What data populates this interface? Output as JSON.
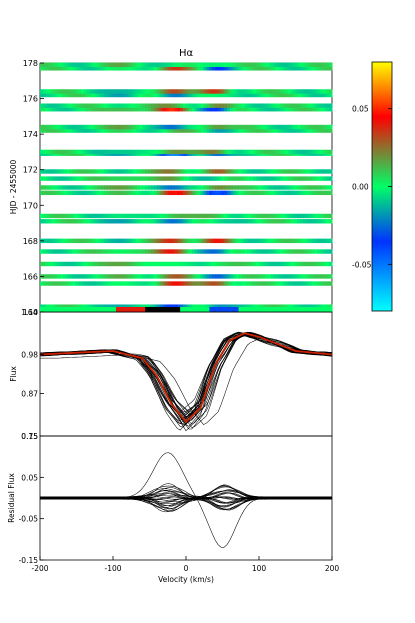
{
  "chart_data": [
    {
      "type": "heatmap",
      "title": "Hα",
      "ylabel": "HJD - 2455000",
      "x_range": [
        -200,
        200
      ],
      "ylim": [
        164,
        178
      ],
      "y_ticks": [
        164,
        166,
        168,
        170,
        172,
        174,
        176,
        178
      ],
      "rows_hjd_offset": [
        164.3,
        165.6,
        166.0,
        166.7,
        167.4,
        168.0,
        169.1,
        169.4,
        170.7,
        171.0,
        171.5,
        171.9,
        172.9,
        173.0,
        174.2,
        174.4,
        175.4,
        175.6,
        176.2,
        176.4,
        177.7,
        177.9
      ],
      "colorbar": {
        "ticks": [
          -0.05,
          0.0,
          0.05
        ],
        "tick_labels": [
          "-0.05",
          "0.00",
          "0.05"
        ],
        "range": [
          -0.08,
          0.08
        ],
        "colors": [
          "#00ffff",
          "#0033ff",
          "#00ff66",
          "#ff0000",
          "#ffff00"
        ]
      }
    },
    {
      "type": "line",
      "ylabel": "Flux",
      "xlim": [
        -200,
        200
      ],
      "ylim": [
        0.75,
        1.1
      ],
      "y_ticks": [
        0.75,
        0.87,
        0.98,
        1.1
      ],
      "y_tick_labels": [
        "0.75",
        "0.87",
        "0.98",
        "1.10"
      ],
      "mean_profile": {
        "color": "#cc2200",
        "x": [
          -200,
          -150,
          -100,
          -60,
          -40,
          -20,
          0,
          20,
          40,
          60,
          80,
          100,
          150,
          200
        ],
        "y": [
          0.98,
          0.985,
          0.99,
          0.97,
          0.92,
          0.84,
          0.79,
          0.83,
          0.95,
          1.02,
          1.04,
          1.03,
          0.99,
          0.98
        ]
      }
    },
    {
      "type": "line",
      "xlabel": "Velocity (km/s)",
      "ylabel": "Residual Flux",
      "xlim": [
        -200,
        200
      ],
      "ylim": [
        -0.15,
        0.15
      ],
      "x_ticks": [
        -200,
        -100,
        0,
        100,
        200
      ],
      "y_ticks": [
        -0.15,
        -0.05,
        0.05,
        0.15
      ],
      "y_tick_labels": [
        "-0.15",
        "-0.05",
        "0.05",
        "0.15"
      ]
    }
  ]
}
